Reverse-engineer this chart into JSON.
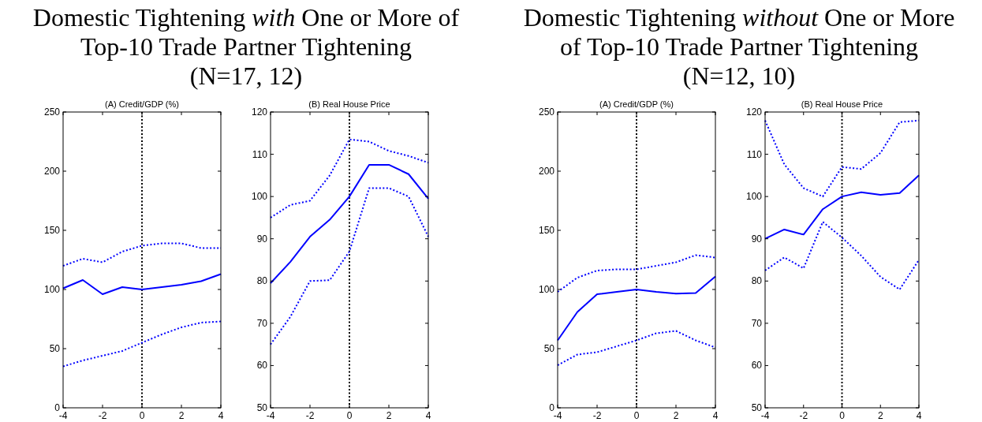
{
  "chart_data": [
    {
      "type": "other",
      "title": "Domestic Tightening with One or More of Top-10 Trade Partner Tightening (N=17, 12)"
    },
    {
      "type": "line",
      "title": "(A) Credit/GDP (%)",
      "x": [
        -4,
        -3,
        -2,
        -1,
        0,
        1,
        2,
        3,
        4
      ],
      "xlim": [
        -4,
        4
      ],
      "xticks": [
        -4,
        -2,
        0,
        2,
        4
      ],
      "ylim": [
        0,
        250
      ],
      "yticks": [
        0,
        50,
        100,
        150,
        200,
        250
      ],
      "grid": false,
      "ref_lines": [
        {
          "axis": "x",
          "value": 0,
          "color": "#000000",
          "line_style": "dotted"
        }
      ],
      "series": [
        {
          "color": "#0000ff",
          "line_style": "solid",
          "values": [
            101,
            108,
            96,
            102,
            100,
            102,
            104,
            107,
            113
          ]
        },
        {
          "color": "#0000ff",
          "line_style": "dotted",
          "values": [
            120,
            126,
            123,
            132,
            137,
            139,
            139,
            135,
            135
          ]
        },
        {
          "color": "#0000ff",
          "line_style": "dotted",
          "values": [
            35,
            40,
            44,
            48,
            55,
            62,
            68,
            72,
            73
          ]
        }
      ]
    },
    {
      "type": "line",
      "title": "(B) Real House Price",
      "x": [
        -4,
        -3,
        -2,
        -1,
        0,
        1,
        2,
        3,
        4
      ],
      "xlim": [
        -4,
        4
      ],
      "xticks": [
        -4,
        -2,
        0,
        2,
        4
      ],
      "ylim": [
        50,
        120
      ],
      "yticks": [
        50,
        60,
        70,
        80,
        90,
        100,
        110,
        120
      ],
      "grid": false,
      "ref_lines": [
        {
          "axis": "x",
          "value": 0,
          "color": "#000000",
          "line_style": "dotted"
        }
      ],
      "series": [
        {
          "color": "#0000ff",
          "line_style": "solid",
          "values": [
            79.5,
            84.5,
            90.5,
            94.5,
            100,
            107.5,
            107.5,
            105.3,
            99.5
          ]
        },
        {
          "color": "#0000ff",
          "line_style": "dotted",
          "values": [
            95,
            98,
            99,
            105,
            113.5,
            113,
            110.8,
            109.6,
            108
          ]
        },
        {
          "color": "#0000ff",
          "line_style": "dotted",
          "values": [
            65,
            71.5,
            80,
            80.2,
            87,
            102,
            102,
            100,
            90.5
          ]
        }
      ]
    },
    {
      "type": "other",
      "title": "Domestic Tightening without One or More of Top-10 Trade Partner Tightening (N=12, 10)"
    },
    {
      "type": "line",
      "title": "(A) Credit/GDP (%)",
      "x": [
        -4,
        -3,
        -2,
        -1,
        0,
        1,
        2,
        3,
        4
      ],
      "xlim": [
        -4,
        4
      ],
      "xticks": [
        -4,
        -2,
        0,
        2,
        4
      ],
      "ylim": [
        0,
        250
      ],
      "yticks": [
        0,
        50,
        100,
        150,
        200,
        250
      ],
      "grid": false,
      "ref_lines": [
        {
          "axis": "x",
          "value": 0,
          "color": "#000000",
          "line_style": "dotted"
        }
      ],
      "series": [
        {
          "color": "#0000ff",
          "line_style": "solid",
          "values": [
            57,
            81,
            96,
            98,
            100,
            98,
            96.5,
            97,
            111
          ]
        },
        {
          "color": "#0000ff",
          "line_style": "dotted",
          "values": [
            98,
            110,
            116,
            117,
            117,
            120,
            123,
            129,
            127
          ]
        },
        {
          "color": "#0000ff",
          "line_style": "dotted",
          "values": [
            36,
            45,
            47,
            52,
            57,
            63,
            65,
            57,
            51
          ]
        }
      ]
    },
    {
      "type": "line",
      "title": "(B) Real House Price",
      "x": [
        -4,
        -3,
        -2,
        -1,
        0,
        1,
        2,
        3,
        4
      ],
      "xlim": [
        -4,
        4
      ],
      "xticks": [
        -4,
        -2,
        0,
        2,
        4
      ],
      "ylim": [
        50,
        120
      ],
      "yticks": [
        50,
        60,
        70,
        80,
        90,
        100,
        110,
        120
      ],
      "grid": false,
      "ref_lines": [
        {
          "axis": "x",
          "value": 0,
          "color": "#000000",
          "line_style": "dotted"
        }
      ],
      "series": [
        {
          "color": "#0000ff",
          "line_style": "solid",
          "values": [
            90,
            92.2,
            91,
            97,
            100,
            101,
            100.4,
            100.8,
            105
          ]
        },
        {
          "color": "#0000ff",
          "line_style": "dotted",
          "values": [
            118,
            107.6,
            102,
            100,
            107,
            106.5,
            110.3,
            117.6,
            118
          ]
        },
        {
          "color": "#0000ff",
          "line_style": "dotted",
          "values": [
            82.5,
            85.6,
            83,
            94,
            90.3,
            86,
            81,
            78,
            85
          ]
        }
      ]
    }
  ]
}
